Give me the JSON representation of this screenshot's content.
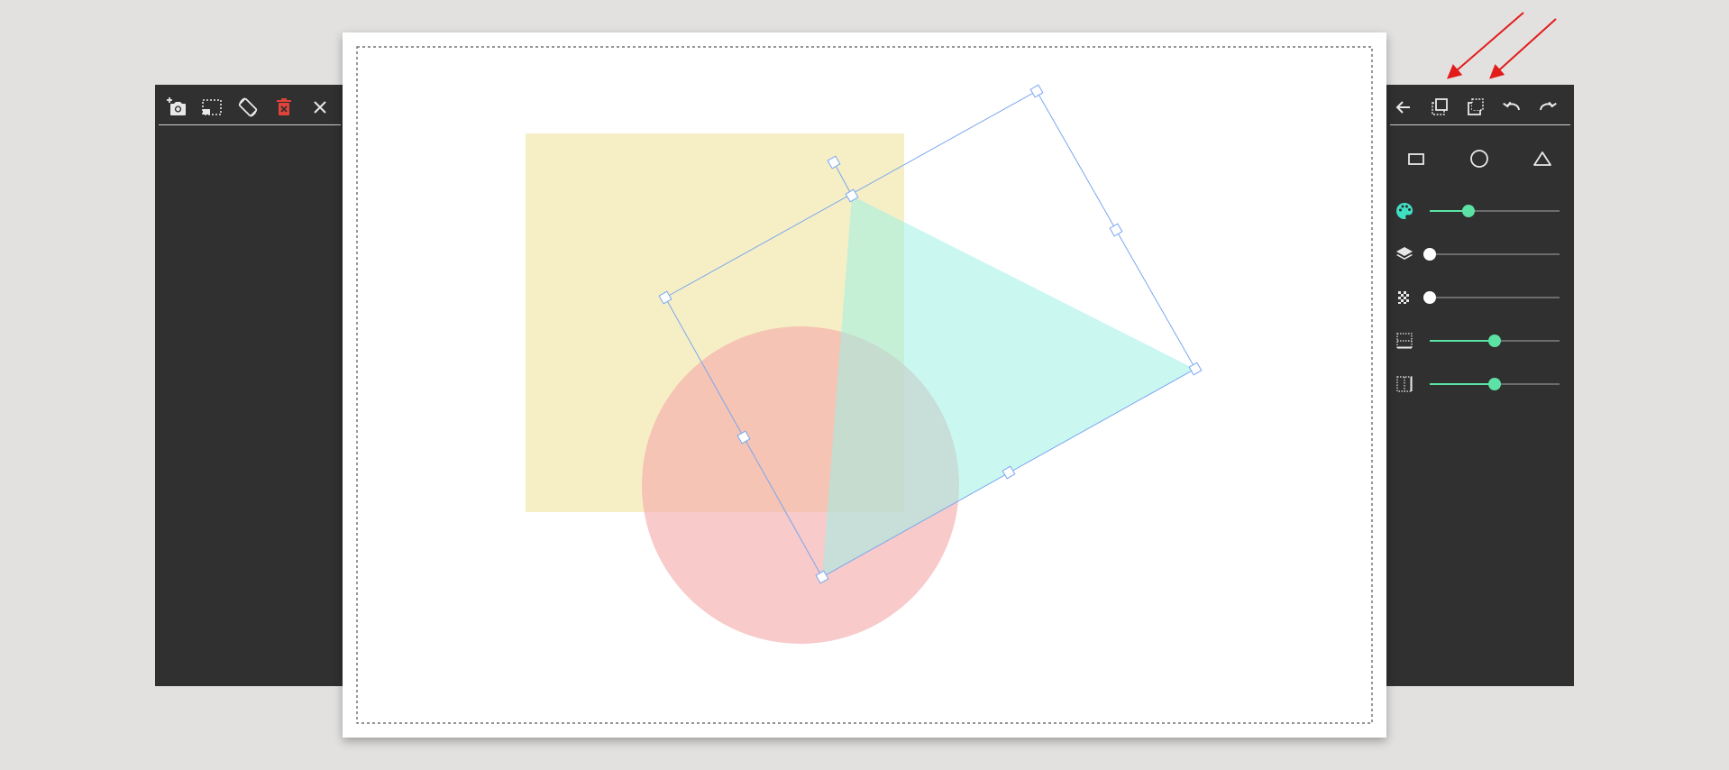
{
  "colors": {
    "panel_bg": "#303030",
    "icon": "#e8e8e8",
    "delete_icon": "#e0433a",
    "accent": "#5be2a4",
    "palette_icon": "#3ee0c4",
    "rect_fill": "#f6efc5",
    "circle_fill": "#f4a9a9",
    "triangle_fill": "#9ef1e3",
    "selection": "#7aa7f0",
    "annotation": "#e31b1b"
  },
  "left_toolbar": {
    "buttons": [
      {
        "name": "add-photo-button",
        "icon": "camera-plus-icon"
      },
      {
        "name": "crop-button",
        "icon": "crop-selection-icon"
      },
      {
        "name": "rotate-button",
        "icon": "screen-rotation-icon"
      },
      {
        "name": "delete-button",
        "icon": "trash-icon"
      },
      {
        "name": "close-button",
        "icon": "close-icon"
      }
    ]
  },
  "right_toolbar": {
    "buttons": [
      {
        "name": "back-button",
        "icon": "arrow-left-icon"
      },
      {
        "name": "bring-forward-button",
        "icon": "bring-forward-icon"
      },
      {
        "name": "send-backward-button",
        "icon": "send-backward-icon"
      },
      {
        "name": "undo-button",
        "icon": "undo-icon"
      },
      {
        "name": "redo-button",
        "icon": "redo-icon"
      }
    ],
    "shapes": [
      {
        "name": "rectangle-shape-button",
        "icon": "rectangle-icon"
      },
      {
        "name": "circle-shape-button",
        "icon": "circle-icon"
      },
      {
        "name": "triangle-shape-button",
        "icon": "triangle-icon"
      }
    ],
    "sliders": [
      {
        "name": "color-slider",
        "icon": "palette-icon",
        "value": 0.3,
        "active": true
      },
      {
        "name": "layer-slider",
        "icon": "layers-icon",
        "value": 0.0,
        "active": false
      },
      {
        "name": "opacity-slider",
        "icon": "checkerboard-icon",
        "value": 0.0,
        "active": false
      },
      {
        "name": "horizontal-border-slider",
        "icon": "border-horizontal-icon",
        "value": 0.5,
        "active": true
      },
      {
        "name": "vertical-border-slider",
        "icon": "border-vertical-icon",
        "value": 0.5,
        "active": true
      }
    ]
  }
}
